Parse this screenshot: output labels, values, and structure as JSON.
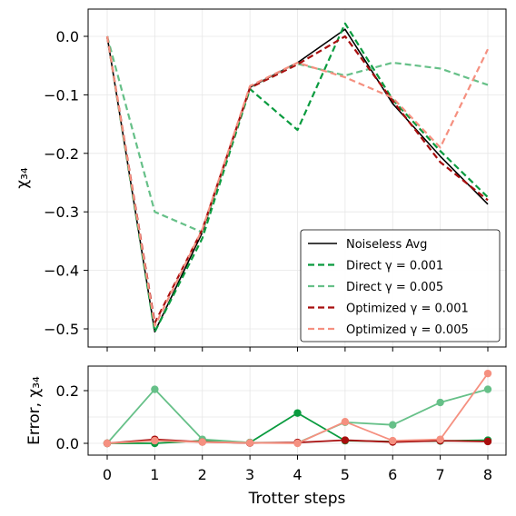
{
  "chart_data": [
    {
      "type": "line",
      "ylabel": "χ₃₄",
      "xlim": [
        0,
        8
      ],
      "ylim": [
        -0.5,
        0.0
      ],
      "yticks": [
        0.0,
        -0.1,
        -0.2,
        -0.3,
        -0.4,
        -0.5
      ],
      "ytick_labels": [
        "0.0",
        "−0.1",
        "−0.2",
        "−0.3",
        "−0.4",
        "−0.5"
      ],
      "grid": true,
      "legend_position": "lower-right",
      "x": [
        0,
        1,
        2,
        3,
        4,
        5,
        6,
        7,
        8
      ],
      "series": [
        {
          "name": "Noiseless Avg",
          "color": "#000000",
          "dash": "solid",
          "values": [
            0.0,
            -0.505,
            -0.335,
            -0.087,
            -0.045,
            0.012,
            -0.115,
            -0.205,
            -0.287
          ]
        },
        {
          "name": "Direct γ = 0.001",
          "color": "#0a9b3f",
          "dash": "dashed",
          "values": [
            0.0,
            -0.505,
            -0.345,
            -0.09,
            -0.16,
            0.022,
            -0.108,
            -0.196,
            -0.275
          ]
        },
        {
          "name": "Direct γ = 0.005",
          "color": "#66c088",
          "dash": "dashed",
          "values": [
            0.0,
            -0.3,
            -0.335,
            -0.088,
            -0.047,
            -0.067,
            -0.045,
            -0.055,
            -0.083
          ]
        },
        {
          "name": "Optimized γ = 0.001",
          "color": "#a80e0e",
          "dash": "dashed",
          "values": [
            0.0,
            -0.49,
            -0.33,
            -0.088,
            -0.048,
            0.0,
            -0.11,
            -0.215,
            -0.28
          ]
        },
        {
          "name": "Optimized γ = 0.005",
          "color": "#f59080",
          "dash": "dashed",
          "values": [
            0.0,
            -0.495,
            -0.33,
            -0.085,
            -0.045,
            -0.07,
            -0.105,
            -0.19,
            -0.022
          ]
        }
      ]
    },
    {
      "type": "line",
      "xlabel": "Trotter steps",
      "ylabel": "Error, χ₃₄",
      "xlim": [
        0,
        8
      ],
      "ylim": [
        0.0,
        0.2
      ],
      "xticks": [
        0,
        1,
        2,
        3,
        4,
        5,
        6,
        7,
        8
      ],
      "xtick_labels": [
        "0",
        "1",
        "2",
        "3",
        "4",
        "5",
        "6",
        "7",
        "8"
      ],
      "yticks": [
        0.0,
        0.2
      ],
      "ytick_labels": [
        "0.0",
        "0.2"
      ],
      "grid": true,
      "markers": true,
      "x": [
        0,
        1,
        2,
        3,
        4,
        5,
        6,
        7,
        8
      ],
      "series": [
        {
          "color": "#0a9b3f",
          "values": [
            0.0,
            0.0,
            0.01,
            0.003,
            0.115,
            0.01,
            0.007,
            0.009,
            0.012
          ]
        },
        {
          "color": "#66c088",
          "values": [
            0.0,
            0.205,
            0.015,
            0.003,
            0.002,
            0.08,
            0.07,
            0.155,
            0.205
          ]
        },
        {
          "color": "#a80e0e",
          "values": [
            0.0,
            0.015,
            0.005,
            0.001,
            0.003,
            0.012,
            0.005,
            0.01,
            0.007
          ]
        },
        {
          "color": "#f59080",
          "values": [
            0.0,
            0.01,
            0.005,
            0.002,
            0.0,
            0.082,
            0.01,
            0.015,
            0.265
          ]
        }
      ]
    }
  ]
}
